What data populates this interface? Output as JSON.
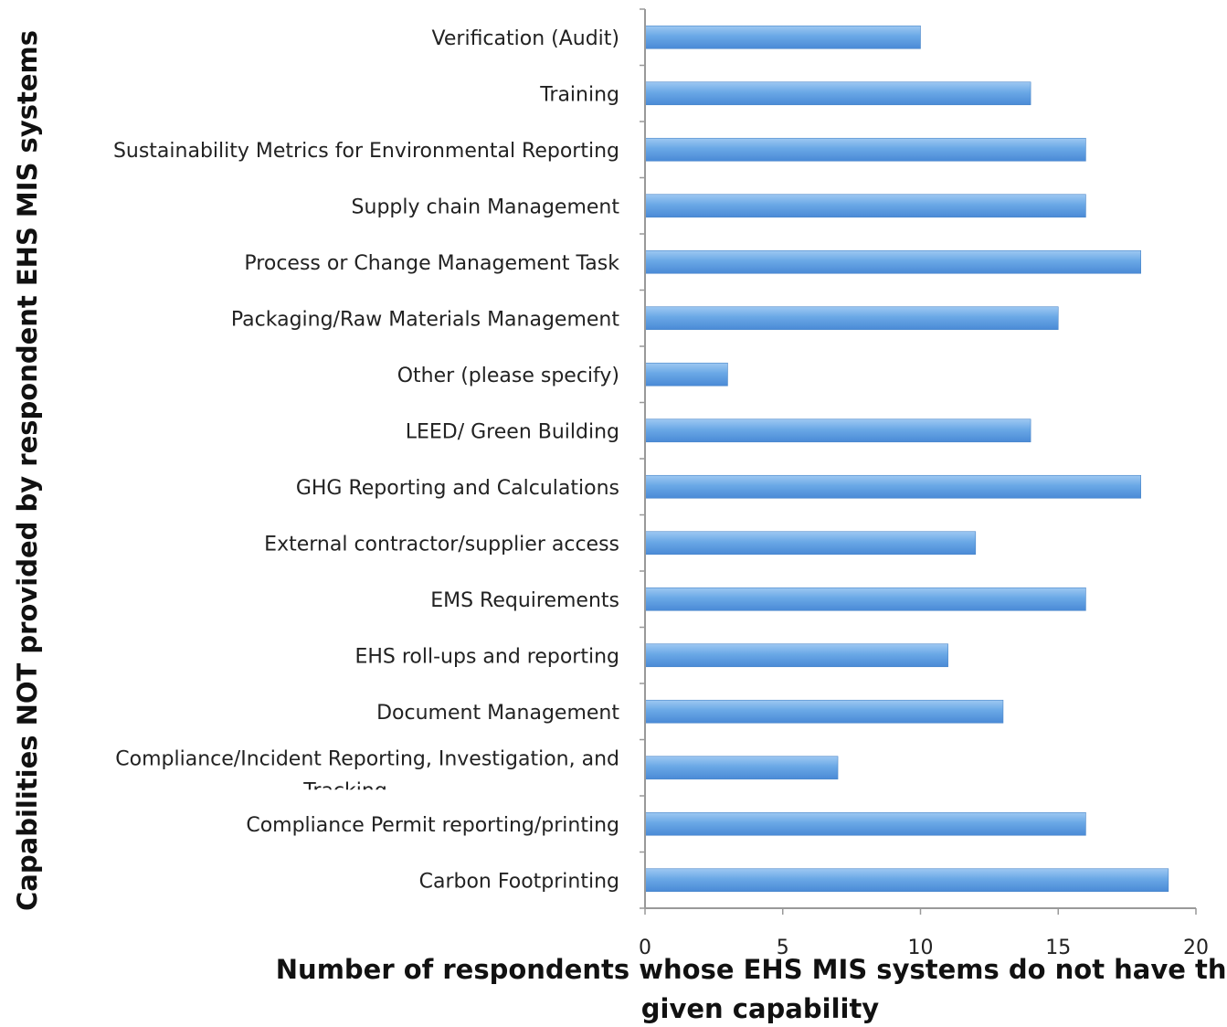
{
  "chart_data": {
    "type": "bar",
    "orientation": "horizontal",
    "categories": [
      "Verification (Audit)",
      "Training",
      "Sustainability Metrics for Environmental Reporting",
      "Supply chain Management",
      "Process or Change Management Task",
      "Packaging/Raw Materials Management",
      "Other (please specify)",
      "LEED/ Green Building",
      "GHG Reporting and Calculations",
      "External contractor/supplier access",
      "EMS Requirements",
      "EHS roll-ups and reporting",
      "Document Management",
      "Compliance/Incident Reporting, Investigation, and Tracking",
      "Compliance Permit reporting/printing",
      "Carbon Footprinting"
    ],
    "values": [
      10,
      14,
      16,
      16,
      18,
      15,
      3,
      14,
      18,
      12,
      16,
      11,
      13,
      7,
      16,
      19
    ],
    "xlabel": "Number of respondents whose EHS MIS systems do not have the given capability",
    "ylabel": "Capabilities NOT provided by respondent EHS MIS systems",
    "xlim": [
      0,
      20
    ],
    "xticks": [
      0,
      5,
      10,
      15,
      20
    ],
    "bar_color": "#5b9bd5",
    "grid": false,
    "legend": "none"
  }
}
